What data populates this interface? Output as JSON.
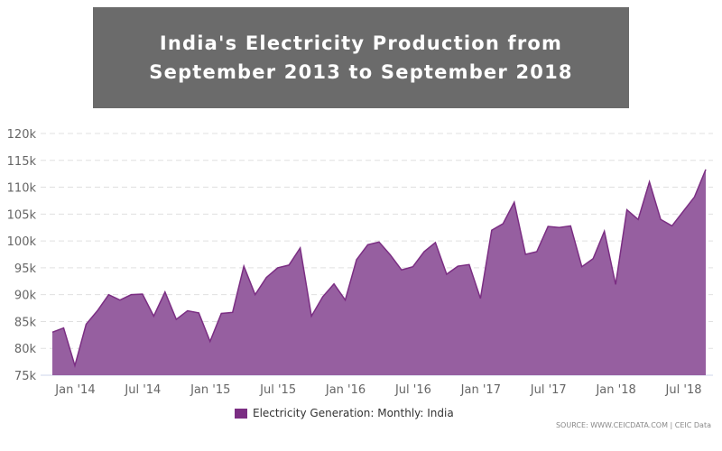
{
  "title_lines": [
    "India's Electricity Production from",
    "September 2013 to September 2018"
  ],
  "chart_data": {
    "type": "area",
    "title": "India's Electricity Production from September 2013 to September 2018",
    "x_start": "2013-10",
    "x_end": "2018-09",
    "values": [
      83,
      83.8,
      76.8,
      84.5,
      87,
      90,
      89,
      90,
      90.1,
      86,
      90.5,
      85.4,
      87,
      86.6,
      81.3,
      86.5,
      86.7,
      95.3,
      90,
      93.2,
      95,
      95.5,
      98.7,
      86,
      89.6,
      92,
      89,
      96.5,
      99.3,
      99.8,
      97.4,
      94.6,
      95.2,
      98,
      99.7,
      93.8,
      95.3,
      95.6,
      89.3,
      102,
      103.2,
      107.2,
      97.5,
      98,
      102.7,
      102.5,
      102.8,
      95.2,
      96.7,
      101.8,
      91.9,
      105.8,
      104,
      111,
      104,
      102.8,
      105.5,
      108.2,
      113.3
    ],
    "first_value": 77.5,
    "ylim": [
      75,
      120
    ],
    "yticks": [
      "75k",
      "80k",
      "85k",
      "90k",
      "95k",
      "100k",
      "105k",
      "110k",
      "115k",
      "120k"
    ],
    "xticks": [
      {
        "label": "Jan '14",
        "month": "2014-01"
      },
      {
        "label": "Jul '14",
        "month": "2014-07"
      },
      {
        "label": "Jan '15",
        "month": "2015-01"
      },
      {
        "label": "Jul '15",
        "month": "2015-07"
      },
      {
        "label": "Jan '16",
        "month": "2016-01"
      },
      {
        "label": "Jul '16",
        "month": "2016-07"
      },
      {
        "label": "Jan '17",
        "month": "2017-01"
      },
      {
        "label": "Jul '17",
        "month": "2017-07"
      },
      {
        "label": "Jan '18",
        "month": "2018-01"
      },
      {
        "label": "Jul '18",
        "month": "2018-07"
      }
    ],
    "grid": true,
    "legend": "bottom-center",
    "series_name": "Electricity Generation: Monthly: India",
    "color": "#7b2e83",
    "fill": "#965fa0"
  },
  "source": "SOURCE: WWW.CEICDATA.COM | CEIC Data"
}
